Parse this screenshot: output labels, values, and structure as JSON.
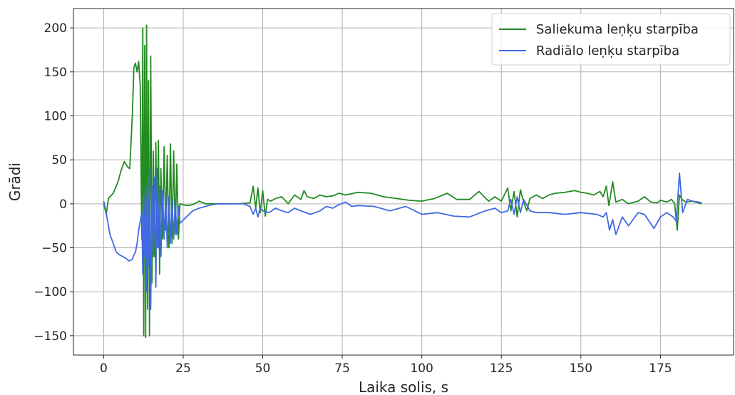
{
  "chart_data": {
    "type": "line",
    "title": "",
    "xlabel": "Laika solis, s",
    "ylabel": "Grādi",
    "xlim": [
      -9.5,
      198
    ],
    "ylim": [
      -172,
      222
    ],
    "xticks": [
      0,
      25,
      50,
      75,
      100,
      125,
      150,
      175
    ],
    "yticks": [
      -150,
      -100,
      -50,
      0,
      50,
      100,
      150,
      200
    ],
    "grid": true,
    "legend": {
      "position": "top-right"
    },
    "series": [
      {
        "name": "Saliekuma leņķu starpība",
        "color": "#228b22",
        "x": [
          0.0,
          0.8,
          1.5,
          3.0,
          4.5,
          5.5,
          6.5,
          7.5,
          8.2,
          9.0,
          9.5,
          10.0,
          10.5,
          11.0,
          11.5,
          12.0,
          12.3,
          12.6,
          12.9,
          13.2,
          13.5,
          13.8,
          14.1,
          14.4,
          14.8,
          15.2,
          15.6,
          16.0,
          16.4,
          16.8,
          17.2,
          17.6,
          18.0,
          18.5,
          19.0,
          19.5,
          20.0,
          20.5,
          21.0,
          21.5,
          22.0,
          22.5,
          23.0,
          23.5,
          24.0,
          26.0,
          28.0,
          30.0,
          32.0,
          35.0,
          38.0,
          42.0,
          46.0,
          47.0,
          47.8,
          48.5,
          49.2,
          50.0,
          50.8,
          51.5,
          52.5,
          54.0,
          56.0,
          58.0,
          60.0,
          62.0,
          63.0,
          64.0,
          66.0,
          68.0,
          70.0,
          72.0,
          74.0,
          76.0,
          80.0,
          84.0,
          88.0,
          92.0,
          96.0,
          100.0,
          104.0,
          108.0,
          111.0,
          115.0,
          118.0,
          121.0,
          123.0,
          125.0,
          127.0,
          128.0,
          129.0,
          130.0,
          131.0,
          132.0,
          133.0,
          134.0,
          136.0,
          138.0,
          140.0,
          142.0,
          145.0,
          148.0,
          150.0,
          152.0,
          154.0,
          156.0,
          157.0,
          158.0,
          158.8,
          160.0,
          161.0,
          163.0,
          165.0,
          168.0,
          170.0,
          172.0,
          174.0,
          175.0,
          177.0,
          178.5,
          179.5,
          180.3,
          181.0,
          181.8,
          183.0,
          185.0,
          187.0,
          188.0
        ],
        "y": [
          0,
          -12,
          6,
          12,
          25,
          38,
          48,
          42,
          40,
          100,
          155,
          160,
          150,
          162,
          135,
          -40,
          200,
          -150,
          180,
          -152,
          203,
          -120,
          140,
          -150,
          168,
          -90,
          60,
          -60,
          70,
          -50,
          72,
          -80,
          40,
          -40,
          65,
          -30,
          55,
          -50,
          68,
          -45,
          60,
          -35,
          45,
          -40,
          0,
          -2,
          -1,
          3,
          0,
          0,
          0,
          0,
          1,
          20,
          -5,
          18,
          -10,
          15,
          -14,
          5,
          3,
          6,
          8,
          0,
          10,
          5,
          15,
          8,
          6,
          10,
          8,
          9,
          12,
          10,
          13,
          12,
          8,
          6,
          4,
          3,
          6,
          12,
          5,
          5,
          14,
          3,
          8,
          3,
          18,
          -8,
          14,
          -15,
          16,
          2,
          -8,
          6,
          10,
          6,
          10,
          12,
          13,
          15,
          13,
          12,
          10,
          14,
          8,
          20,
          -2,
          25,
          2,
          5,
          0,
          3,
          8,
          2,
          1,
          4,
          2,
          5,
          0,
          -30,
          10,
          5,
          2,
          3,
          1,
          0
        ]
      },
      {
        "name": "Radiālo leņķu starpība",
        "color": "#4169e1",
        "x": [
          0.0,
          0.5,
          1.0,
          1.5,
          2.0,
          3.0,
          4.0,
          5.0,
          6.0,
          7.0,
          8.0,
          9.0,
          9.5,
          10.0,
          10.5,
          11.0,
          11.5,
          12.0,
          12.3,
          12.6,
          12.9,
          13.2,
          13.5,
          13.8,
          14.1,
          14.4,
          14.8,
          15.2,
          15.6,
          16.0,
          16.4,
          16.8,
          17.2,
          17.6,
          18.0,
          18.5,
          19.0,
          19.5,
          20.0,
          20.5,
          21.0,
          21.5,
          22.0,
          22.5,
          23.0,
          23.5,
          24.0,
          26.0,
          28.0,
          30.0,
          32.0,
          34.0,
          36.0,
          40.0,
          44.0,
          46.0,
          47.0,
          47.8,
          48.5,
          49.2,
          50.0,
          52.0,
          54.0,
          56.0,
          58.0,
          60.0,
          62.0,
          65.0,
          68.0,
          70.0,
          72.0,
          74.0,
          76.0,
          78.0,
          80.0,
          85.0,
          90.0,
          95.0,
          100.0,
          105.0,
          110.0,
          115.0,
          120.0,
          123.0,
          125.0,
          127.0,
          128.0,
          129.0,
          130.0,
          131.0,
          132.0,
          134.0,
          136.0,
          140.0,
          145.0,
          150.0,
          155.0,
          157.0,
          158.0,
          159.0,
          160.0,
          161.0,
          163.0,
          165.0,
          168.0,
          170.0,
          173.0,
          175.0,
          177.0,
          179.0,
          180.0,
          181.0,
          182.0,
          183.5,
          185.0,
          187.0,
          188.0
        ],
        "y": [
          3,
          -5,
          -15,
          -25,
          -35,
          -45,
          -55,
          -58,
          -60,
          -62,
          -65,
          -63,
          -58,
          -55,
          -45,
          -30,
          -20,
          -10,
          -80,
          10,
          -60,
          20,
          -100,
          30,
          -70,
          40,
          -120,
          20,
          -60,
          30,
          -95,
          40,
          -50,
          20,
          -60,
          15,
          -40,
          10,
          -50,
          8,
          -45,
          5,
          -40,
          3,
          -35,
          -2,
          -22,
          -15,
          -8,
          -5,
          -3,
          -1,
          0,
          0,
          0,
          -3,
          -12,
          -5,
          -15,
          -5,
          -8,
          -10,
          -5,
          -8,
          -10,
          -5,
          -8,
          -12,
          -8,
          -3,
          -5,
          -1,
          2,
          -3,
          -2,
          -3,
          -8,
          -3,
          -12,
          -10,
          -14,
          -15,
          -8,
          -5,
          -10,
          -8,
          5,
          -12,
          8,
          -10,
          5,
          -8,
          -10,
          -10,
          -12,
          -10,
          -12,
          -15,
          -10,
          -30,
          -18,
          -35,
          -15,
          -25,
          -10,
          -12,
          -28,
          -15,
          -10,
          -15,
          -20,
          35,
          -10,
          5,
          3,
          2,
          1
        ]
      }
    ]
  }
}
